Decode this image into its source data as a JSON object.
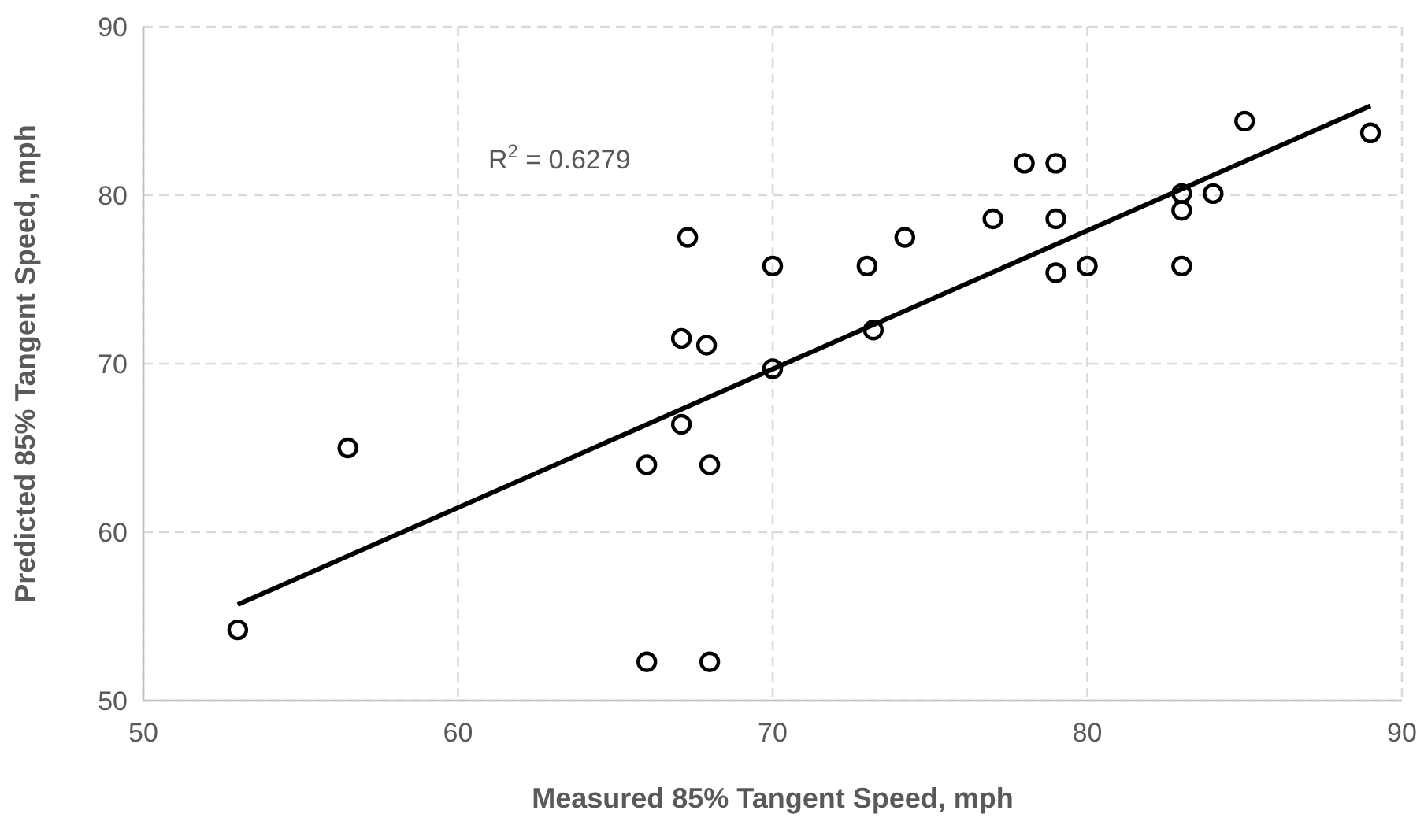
{
  "chart_data": {
    "type": "scatter",
    "xlabel": "Measured 85% Tangent Speed, mph",
    "ylabel": "Predicted 85% Tangent Speed, mph",
    "annotations": [
      "R$^{2}$ = 0.6279"
    ],
    "xlim": [
      50,
      90
    ],
    "xticks": [
      50,
      60,
      70,
      80,
      90
    ],
    "ylim": [
      50,
      90
    ],
    "yticks": [
      50,
      60,
      70,
      80,
      90
    ],
    "grid": true,
    "series": [
      {
        "color": "#000000",
        "marker": "circle",
        "x": [
          53.0,
          56.5,
          66.0,
          68.0,
          66.0,
          68.0,
          67.3,
          70.0,
          67.1,
          67.9,
          67.1,
          70.0,
          73.0,
          74.2,
          73.2,
          77.0,
          78.0,
          79.0,
          79.0,
          79.0,
          80.0,
          83.0,
          83.0,
          83.0,
          84.0,
          85.0,
          89.0
        ],
        "values": [
          54.2,
          65.0,
          64.0,
          64.0,
          52.3,
          52.3,
          77.5,
          75.8,
          71.5,
          71.1,
          66.4,
          69.7,
          75.8,
          77.5,
          72.0,
          78.6,
          81.9,
          81.9,
          78.6,
          75.4,
          75.8,
          75.8,
          80.1,
          79.1,
          80.1,
          84.4,
          83.7
        ]
      },
      {
        "type": "line",
        "color": "#000000",
        "line_style": "solid",
        "x": [
          53,
          89
        ],
        "values": [
          55.7,
          85.3
        ]
      }
    ]
  }
}
